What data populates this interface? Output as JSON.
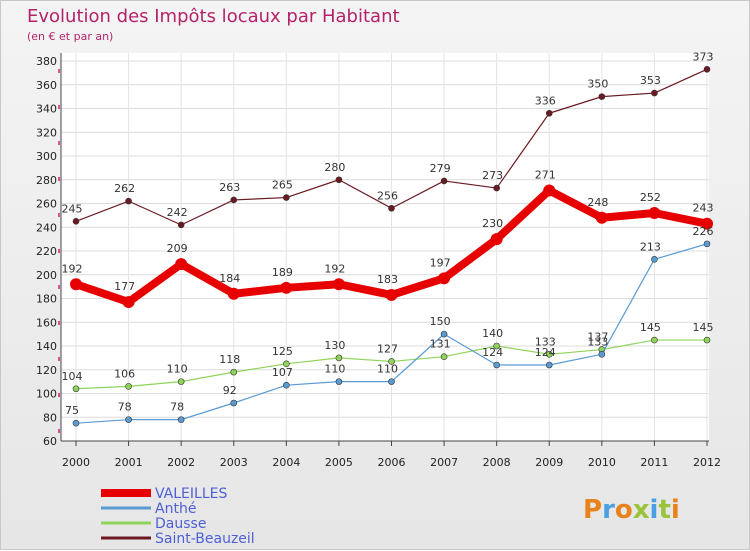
{
  "chart_data": {
    "type": "line",
    "title": "Evolution des Impôts locaux par Habitant",
    "subtitle": "(en € et par an)",
    "xlabel": "",
    "ylabel": "",
    "x": [
      "2000",
      "2001",
      "2002",
      "2003",
      "2004",
      "2005",
      "2006",
      "2007",
      "2008",
      "2009",
      "2010",
      "2011",
      "2012"
    ],
    "ylim": [
      60,
      380
    ],
    "yticks": [
      60,
      80,
      100,
      120,
      140,
      160,
      180,
      200,
      220,
      240,
      260,
      280,
      300,
      320,
      340,
      360,
      380
    ],
    "grid": true,
    "legend_position": "bottom-left",
    "series": [
      {
        "name": "VALEILLES",
        "color": "#e60000",
        "values": [
          192,
          177,
          209,
          184,
          189,
          192,
          183,
          197,
          230,
          271,
          248,
          252,
          243
        ]
      },
      {
        "name": "Anthé",
        "color": "#5a9bd4",
        "values": [
          75,
          78,
          78,
          92,
          107,
          110,
          110,
          150,
          124,
          124,
          133,
          213,
          226
        ]
      },
      {
        "name": "Dausse",
        "color": "#8fd45a",
        "values": [
          104,
          106,
          110,
          118,
          125,
          130,
          127,
          131,
          140,
          133,
          137,
          145,
          145
        ]
      },
      {
        "name": "Saint-Beauzeil",
        "color": "#6b1a22",
        "values": [
          245,
          262,
          242,
          263,
          265,
          280,
          256,
          279,
          273,
          336,
          350,
          353,
          373
        ]
      }
    ]
  },
  "logo": {
    "text": "Proxiti"
  }
}
